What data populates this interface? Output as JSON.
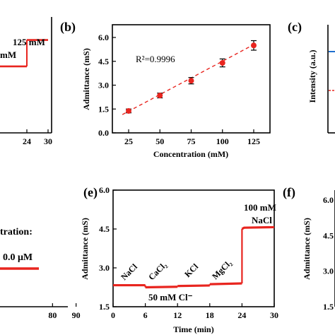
{
  "chart_data": [
    {
      "panel": "a-partial",
      "type": "line",
      "x_ticks": [
        "24",
        "30"
      ],
      "annotations": [
        "125 mM",
        "mM"
      ],
      "series": [
        {
          "x": [
            12,
            18,
            24
          ],
          "y": [
            3.9,
            3.9,
            3.9
          ]
        },
        {
          "x": [
            24,
            25,
            30
          ],
          "y": [
            5.45,
            5.45,
            5.45
          ]
        }
      ],
      "xlim": [
        12,
        31
      ],
      "ylim": [
        0,
        6.8
      ],
      "color": "#e8251f"
    },
    {
      "panel": "b",
      "type": "scatter",
      "label": "(b)",
      "xlabel": "Concentration (mM)",
      "ylabel": "Admittance (mS)",
      "x_ticks": [
        "25",
        "50",
        "75",
        "100",
        "125"
      ],
      "y_ticks": [
        "0.0",
        "1.5",
        "3.0",
        "4.5",
        "6.0"
      ],
      "xlim": [
        12,
        138
      ],
      "ylim": [
        0,
        6.8
      ],
      "annotation": "R²=0.9996",
      "x": [
        25,
        50,
        75,
        100,
        125
      ],
      "y": [
        1.38,
        2.35,
        3.28,
        4.4,
        5.5
      ],
      "err": [
        0.12,
        0.15,
        0.2,
        0.25,
        0.3
      ],
      "fit": {
        "x": [
          20,
          125
        ],
        "y": [
          1.15,
          5.55
        ]
      },
      "color": "#e8251f"
    },
    {
      "panel": "c-partial",
      "type": "line",
      "label": "(c)",
      "ylabel": "Intensity (a.u.)",
      "series_colors": [
        "#1f6fcf",
        "#e8251f"
      ]
    },
    {
      "panel": "d-partial",
      "type": "line",
      "x_ticks": [
        "80",
        "90"
      ],
      "annotations": [
        "tration:",
        "0.0 μM"
      ],
      "series": [
        {
          "x": [
            55,
            88
          ],
          "y": [
            0.5,
            0.5
          ]
        }
      ],
      "color": "#e8251f"
    },
    {
      "panel": "e",
      "type": "line",
      "label": "(e)",
      "xlabel": "Time (min)",
      "ylabel": "Admittance (mS)",
      "x_ticks": [
        "0",
        "6",
        "12",
        "18",
        "24",
        "30"
      ],
      "y_ticks": [
        "1.5",
        "3.0",
        "4.5",
        "6.0"
      ],
      "xlim": [
        0,
        30
      ],
      "ylim": [
        1.5,
        6.0
      ],
      "segment_labels": [
        "NaCl",
        "CaCl₂",
        "KCl",
        "MgCl₂"
      ],
      "annotation_bottom": "50 mM Cl⁻",
      "annotation_top": [
        "100 mM",
        "NaCl"
      ],
      "series": [
        {
          "x": [
            0,
            6
          ],
          "y": [
            2.33,
            2.33
          ]
        },
        {
          "x": [
            6,
            12
          ],
          "y": [
            2.25,
            2.27
          ]
        },
        {
          "x": [
            12,
            18
          ],
          "y": [
            2.3,
            2.32
          ]
        },
        {
          "x": [
            18,
            24
          ],
          "y": [
            2.37,
            2.4
          ]
        },
        {
          "x": [
            24,
            24.4,
            30
          ],
          "y": [
            4.5,
            4.55,
            4.57
          ]
        }
      ],
      "color": "#e8251f"
    },
    {
      "panel": "f-partial",
      "type": "line",
      "label": "(f)",
      "ylabel": "Admittance (mS)",
      "y_ticks": [
        "1.5",
        "3.0",
        "4.5",
        "6.0"
      ]
    }
  ]
}
